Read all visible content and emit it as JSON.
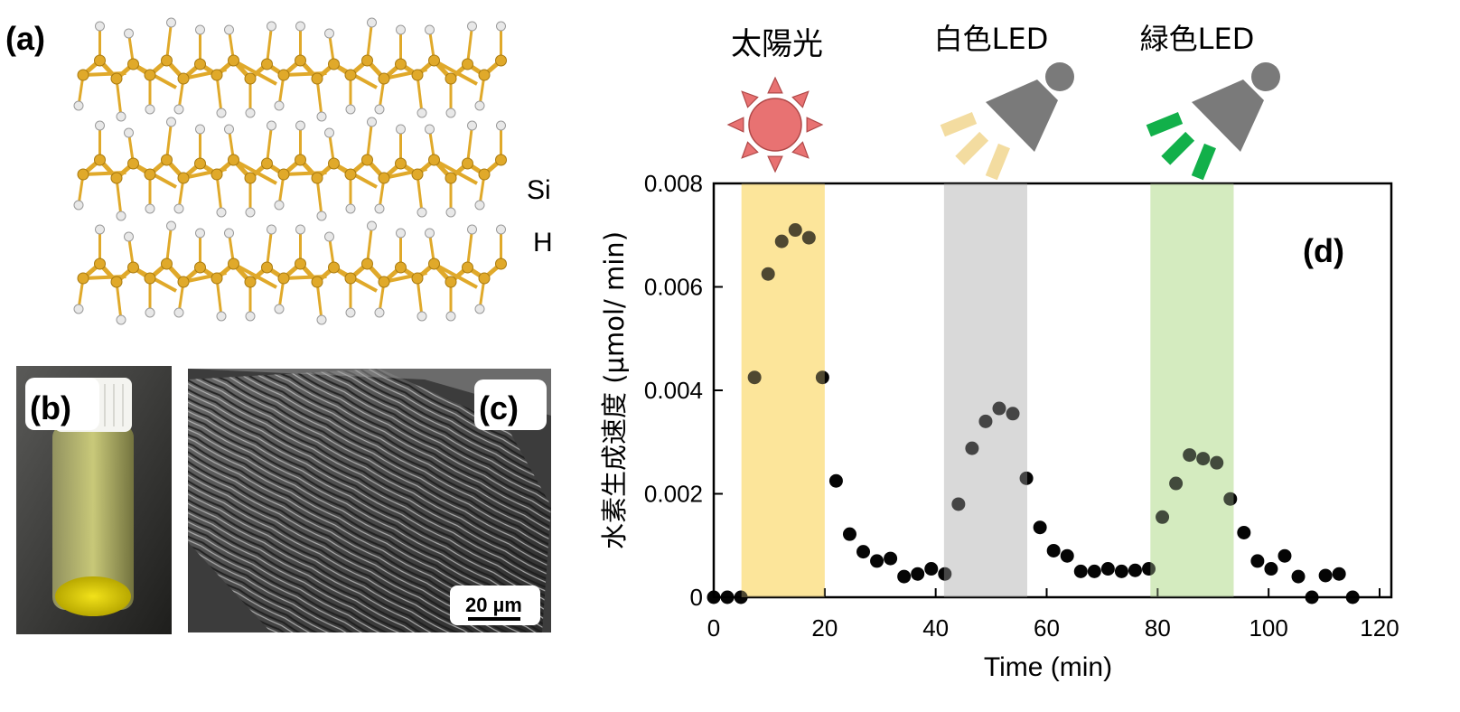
{
  "panels": {
    "a": {
      "label": "(a)",
      "legend": [
        "Si",
        "H"
      ]
    },
    "b": {
      "label": "(b)"
    },
    "c": {
      "label": "(c)",
      "scale_bar": "20 µm"
    },
    "d": {
      "label": "(d)"
    }
  },
  "light_sources": [
    {
      "label": "太陽光",
      "icon": "sun-icon",
      "color": "#e87272"
    },
    {
      "label": "白色LED",
      "icon": "lamp-icon",
      "beam_color": "#f3dca0"
    },
    {
      "label": "緑色LED",
      "icon": "lamp-icon",
      "beam_color": "#12b04a"
    }
  ],
  "colors": {
    "si_atom": "#e0a92a",
    "h_atom": "#e8e8e8",
    "lamp": "#7a7a7a"
  },
  "chart_data": {
    "type": "scatter",
    "xlabel": "Time (min)",
    "ylabel": "水素生成速度 (µmol/ min)",
    "xlim": [
      0,
      120
    ],
    "ylim": [
      0,
      0.008
    ],
    "xticks": [
      "0",
      "20",
      "40",
      "60",
      "80",
      "100",
      "120"
    ],
    "yticks": [
      "0",
      "0.002",
      "0.004",
      "0.006",
      "0.008"
    ],
    "grid": false,
    "illumination_periods": [
      {
        "source": "太陽光",
        "start": 5,
        "end": 20,
        "color": "#fde69a"
      },
      {
        "source": "白色LED",
        "start": 41.5,
        "end": 56.5,
        "color": "#d9d9d9"
      },
      {
        "source": "緑色LED",
        "start": 78.7,
        "end": 93.7,
        "color": "#d4ebbf"
      }
    ],
    "y": [
      0,
      0,
      0,
      0.00425,
      0.00625,
      0.00688,
      0.0071,
      0.00695,
      0.00425,
      0.00225,
      0.00122,
      0.00088,
      0.0007,
      0.00075,
      0.0004,
      0.00045,
      0.00055,
      0.00045,
      0.0018,
      0.00288,
      0.0034,
      0.00365,
      0.00355,
      0.0023,
      0.00135,
      0.0009,
      0.0008,
      0.0005,
      0.0005,
      0.00055,
      0.0005,
      0.00052,
      0.00055,
      0.00155,
      0.0022,
      0.00275,
      0.00268,
      0.0026,
      0.0019,
      0.00125,
      0.0007,
      0.00055,
      0.0008,
      0.0004,
      0,
      0.00042,
      0.00045,
      0
    ],
    "x_step_min": 2.45
  }
}
